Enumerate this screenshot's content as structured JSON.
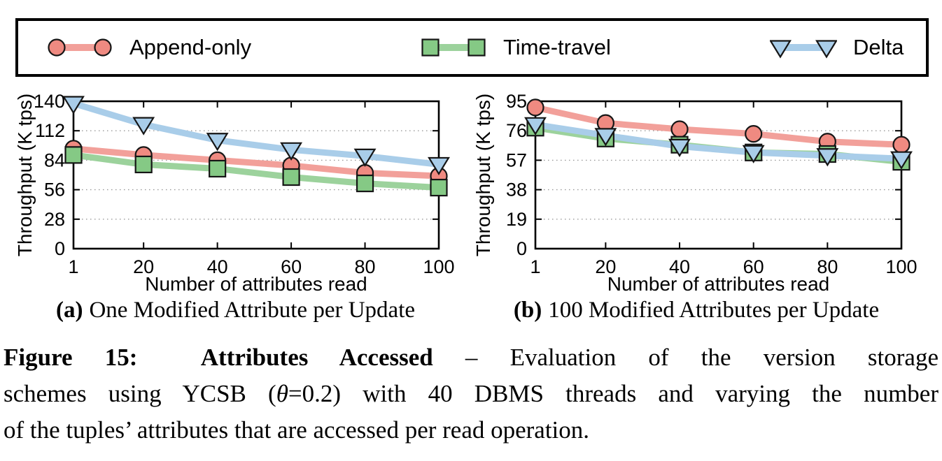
{
  "legend": {
    "items": [
      {
        "label": "Append-only",
        "marker": "circle",
        "line_color": "#F2A09A",
        "marker_color": "#EF8A81"
      },
      {
        "label": "Time-travel",
        "marker": "square",
        "line_color": "#9CD29C",
        "marker_color": "#85C985"
      },
      {
        "label": "Delta",
        "marker": "triangle-down",
        "line_color": "#A9CDE9",
        "marker_color": "#A9CDE9"
      }
    ]
  },
  "chart_data": [
    {
      "type": "line",
      "title": "",
      "xlabel": "Number of attributes read",
      "ylabel": "Throughput (K tps)",
      "xlim": [
        1,
        100
      ],
      "ylim": [
        0,
        140
      ],
      "xticks": [
        1,
        20,
        40,
        60,
        80,
        100
      ],
      "yticks": [
        0,
        28,
        56,
        84,
        112,
        140
      ],
      "grid": true,
      "legend_position": "top-outside",
      "x": [
        1,
        20,
        40,
        60,
        80,
        100
      ],
      "series": [
        {
          "name": "Append-only",
          "values": [
            95,
            89,
            84,
            79,
            72,
            69
          ]
        },
        {
          "name": "Time-travel",
          "values": [
            89,
            80,
            76,
            68,
            62,
            58
          ]
        },
        {
          "name": "Delta",
          "values": [
            138,
            118,
            103,
            94,
            88,
            80
          ]
        }
      ],
      "subcaption_label": "(a)",
      "subcaption_text": "One Modified Attribute per Update"
    },
    {
      "type": "line",
      "title": "",
      "xlabel": "Number of attributes read",
      "ylabel": "Throughput (K tps)",
      "xlim": [
        1,
        100
      ],
      "ylim": [
        0,
        95
      ],
      "xticks": [
        1,
        20,
        40,
        60,
        80,
        100
      ],
      "yticks": [
        0,
        19,
        38,
        57,
        76,
        95
      ],
      "grid": true,
      "legend_position": "top-outside",
      "x": [
        1,
        20,
        40,
        60,
        80,
        100
      ],
      "series": [
        {
          "name": "Append-only",
          "values": [
            91,
            81,
            77,
            74,
            69,
            67
          ]
        },
        {
          "name": "Time-travel",
          "values": [
            78,
            71,
            67,
            62,
            61,
            56
          ]
        },
        {
          "name": "Delta",
          "values": [
            80,
            73,
            66,
            62,
            60,
            58
          ]
        }
      ],
      "subcaption_label": "(b)",
      "subcaption_text": "100 Modified Attributes per Update"
    }
  ],
  "caption": {
    "line1_bold": "Figure 15:  Attributes Accessed",
    "line1_rest": " – Evaluation of the version storage",
    "line2_pre": "schemes using YCSB (",
    "line2_theta": "θ",
    "line2_post": "=0.2) with 40 DBMS threads and varying the number",
    "line3": "of the tuples’ attributes that are accessed per read operation."
  }
}
